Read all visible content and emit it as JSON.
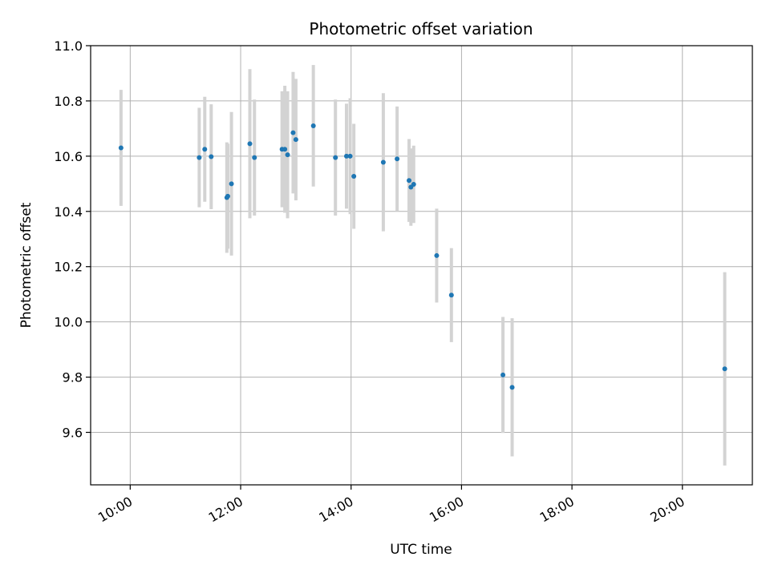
{
  "chart_data": {
    "type": "scatter",
    "title": "Photometric offset variation",
    "xlabel": "UTC time",
    "ylabel": "Photometric offset",
    "grid": true,
    "colors": {
      "point": "#1f77b4",
      "errorbar": "#d3d3d3",
      "grid": "#b0b0b0"
    },
    "xlim": [
      "09:17",
      "21:16"
    ],
    "ylim": [
      9.41,
      11.0
    ],
    "x_ticks": [
      "10:00",
      "12:00",
      "14:00",
      "16:00",
      "18:00",
      "20:00"
    ],
    "y_ticks": [
      "9.6",
      "9.8",
      "10.0",
      "10.2",
      "10.4",
      "10.6",
      "10.8",
      "11.0"
    ],
    "series": [
      {
        "points": [
          {
            "x": "09:50",
            "y": 10.63,
            "err": 0.21
          },
          {
            "x": "11:15",
            "y": 10.595,
            "err": 0.18
          },
          {
            "x": "11:21",
            "y": 10.625,
            "err": 0.19
          },
          {
            "x": "11:28",
            "y": 10.598,
            "err": 0.19
          },
          {
            "x": "11:45",
            "y": 10.45,
            "err": 0.2
          },
          {
            "x": "11:46",
            "y": 10.455,
            "err": 0.19
          },
          {
            "x": "11:50",
            "y": 10.5,
            "err": 0.26
          },
          {
            "x": "12:10",
            "y": 10.645,
            "err": 0.27
          },
          {
            "x": "12:15",
            "y": 10.595,
            "err": 0.21
          },
          {
            "x": "12:45",
            "y": 10.625,
            "err": 0.21
          },
          {
            "x": "12:48",
            "y": 10.625,
            "err": 0.23
          },
          {
            "x": "12:51",
            "y": 10.605,
            "err": 0.23
          },
          {
            "x": "12:57",
            "y": 10.685,
            "err": 0.22
          },
          {
            "x": "13:00",
            "y": 10.66,
            "err": 0.22
          },
          {
            "x": "13:19",
            "y": 10.71,
            "err": 0.22
          },
          {
            "x": "13:43",
            "y": 10.595,
            "err": 0.21
          },
          {
            "x": "13:55",
            "y": 10.6,
            "err": 0.19
          },
          {
            "x": "13:59",
            "y": 10.6,
            "err": 0.21
          },
          {
            "x": "14:03",
            "y": 10.527,
            "err": 0.19
          },
          {
            "x": "14:35",
            "y": 10.578,
            "err": 0.25
          },
          {
            "x": "14:50",
            "y": 10.59,
            "err": 0.19
          },
          {
            "x": "15:03",
            "y": 10.512,
            "err": 0.15
          },
          {
            "x": "15:05",
            "y": 10.488,
            "err": 0.14
          },
          {
            "x": "15:08",
            "y": 10.498,
            "err": 0.14
          },
          {
            "x": "15:33",
            "y": 10.24,
            "err": 0.17
          },
          {
            "x": "15:49",
            "y": 10.097,
            "err": 0.17
          },
          {
            "x": "16:45",
            "y": 9.808,
            "err": 0.21
          },
          {
            "x": "16:55",
            "y": 9.763,
            "err": 0.25
          },
          {
            "x": "20:46",
            "y": 9.83,
            "err": 0.35
          }
        ]
      }
    ]
  }
}
